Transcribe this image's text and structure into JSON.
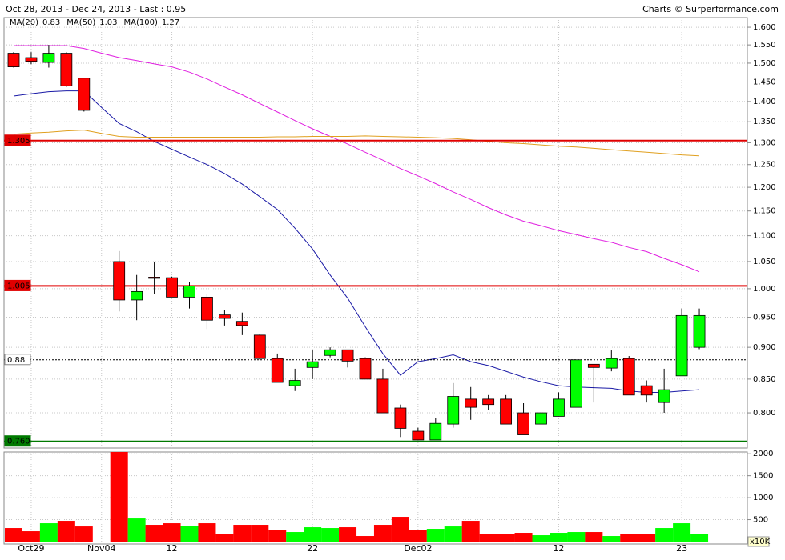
{
  "chart_data": [
    {
      "type": "candlestick",
      "title": "Oct 28, 2013 - Dec 24, 2013 - Last : 0.95",
      "source": "Charts © Surperformance.com",
      "categories": [
        null,
        "Oct29",
        null,
        null,
        null,
        "Nov04",
        null,
        null,
        null,
        "12",
        null,
        null,
        null,
        null,
        null,
        null,
        null,
        "22",
        null,
        null,
        null,
        null,
        null,
        "Dec02",
        null,
        null,
        null,
        null,
        null,
        null,
        null,
        "12",
        null,
        null,
        null,
        null,
        null,
        null,
        "23",
        null
      ],
      "open": [
        1.527,
        1.515,
        1.502,
        1.527,
        1.46,
        null,
        1.05,
        0.98,
        1.021,
        1.02,
        0.985,
        0.985,
        0.954,
        0.943,
        0.92,
        0.882,
        0.84,
        0.868,
        0.887,
        0.896,
        0.882,
        0.85,
        0.807,
        0.774,
        0.762,
        0.784,
        0.82,
        0.82,
        0.82,
        0.8,
        0.784,
        0.795,
        0.808,
        0.873,
        0.867,
        0.882,
        0.84,
        0.815,
        0.855,
        0.9
      ],
      "high": [
        1.53,
        1.53,
        1.55,
        1.53,
        1.46,
        null,
        1.07,
        1.025,
        1.05,
        1.022,
        1.012,
        0.99,
        0.963,
        0.958,
        0.922,
        0.89,
        0.866,
        0.896,
        0.9,
        0.896,
        0.884,
        0.866,
        0.812,
        0.779,
        0.793,
        0.844,
        0.838,
        0.826,
        0.826,
        0.814,
        0.814,
        0.83,
        0.88,
        0.873,
        0.895,
        0.886,
        0.848,
        0.866,
        0.965,
        0.965
      ],
      "low": [
        1.488,
        1.497,
        1.488,
        1.437,
        1.375,
        null,
        0.96,
        0.945,
        0.99,
        0.985,
        0.965,
        0.93,
        0.936,
        0.92,
        0.88,
        0.845,
        0.832,
        0.85,
        0.884,
        0.868,
        0.85,
        0.8,
        0.766,
        0.762,
        0.762,
        0.779,
        0.79,
        0.804,
        0.784,
        0.769,
        0.769,
        0.795,
        0.808,
        0.815,
        0.862,
        0.826,
        0.815,
        0.8,
        0.855,
        0.897
      ],
      "close": [
        1.49,
        1.505,
        1.527,
        1.44,
        1.378,
        null,
        0.98,
        0.995,
        1.02,
        0.985,
        1.005,
        0.945,
        0.948,
        0.936,
        0.882,
        0.845,
        0.848,
        0.877,
        0.896,
        0.878,
        0.85,
        0.8,
        0.778,
        0.762,
        0.785,
        0.824,
        0.808,
        0.812,
        0.784,
        0.769,
        0.8,
        0.82,
        0.88,
        0.868,
        0.882,
        0.826,
        0.826,
        0.834,
        0.953,
        0.953
      ],
      "up_color": "#00ff00",
      "down_color": "#ff0000",
      "series": [
        {
          "name": "MA(20)",
          "last": 0.83,
          "color": "#1a1aa6",
          "values": [
            1.414,
            1.42,
            1.425,
            1.427,
            1.427,
            1.385,
            1.346,
            1.326,
            1.303,
            1.285,
            1.267,
            1.25,
            1.23,
            1.207,
            1.18,
            1.153,
            1.115,
            1.074,
            1.025,
            0.983,
            0.934,
            0.89,
            0.856,
            0.877,
            0.882,
            0.888,
            0.877,
            0.871,
            0.862,
            0.853,
            0.846,
            0.84,
            0.838,
            0.837,
            0.836,
            0.832,
            0.83,
            0.83,
            0.832,
            0.834
          ]
        },
        {
          "name": "MA(50)",
          "last": 1.03,
          "color": "#e020e0",
          "values": [
            1.548,
            1.548,
            1.548,
            1.548,
            1.54,
            1.527,
            1.515,
            1.507,
            1.498,
            1.49,
            1.476,
            1.458,
            1.437,
            1.417,
            1.395,
            1.374,
            1.353,
            1.333,
            1.315,
            1.297,
            1.278,
            1.26,
            1.241,
            1.225,
            1.208,
            1.19,
            1.174,
            1.157,
            1.142,
            1.129,
            1.12,
            1.11,
            1.102,
            1.094,
            1.087,
            1.077,
            1.069,
            1.056,
            1.044,
            1.031
          ]
        },
        {
          "name": "MA(100)",
          "last": 1.27,
          "color": "#e0a020",
          "values": [
            1.32,
            1.323,
            1.325,
            1.328,
            1.33,
            1.322,
            1.315,
            1.313,
            1.313,
            1.313,
            1.313,
            1.313,
            1.313,
            1.313,
            1.313,
            1.314,
            1.314,
            1.315,
            1.315,
            1.315,
            1.316,
            1.315,
            1.314,
            1.313,
            1.312,
            1.31,
            1.307,
            1.303,
            1.3,
            1.298,
            1.295,
            1.292,
            1.29,
            1.287,
            1.284,
            1.281,
            1.278,
            1.275,
            1.272,
            1.27
          ]
        }
      ],
      "levels": [
        {
          "value": 1.305,
          "color": "#e00000"
        },
        {
          "value": 1.005,
          "color": "#e00000"
        },
        {
          "value": 0.88,
          "color": "#000000",
          "dashed": true
        },
        {
          "value": 0.76,
          "label": "0.760",
          "color": "#007a00"
        }
      ],
      "log_scale": true,
      "ylim": [
        0.751,
        1.628
      ],
      "yticks": [
        {
          "value": 1.6,
          "label": "1.600"
        },
        {
          "value": 1.55,
          "label": "1.550"
        },
        {
          "value": 1.5,
          "label": "1.500"
        },
        {
          "value": 1.45,
          "label": "1.450"
        },
        {
          "value": 1.4,
          "label": "1.400"
        },
        {
          "value": 1.35,
          "label": "1.350"
        },
        {
          "value": 1.3,
          "label": "1.300"
        },
        {
          "value": 1.25,
          "label": "1.250"
        },
        {
          "value": 1.2,
          "label": "1.200"
        },
        {
          "value": 1.15,
          "label": "1.150"
        },
        {
          "value": 1.1,
          "label": "1.100"
        },
        {
          "value": 1.05,
          "label": "1.050"
        },
        {
          "value": 1.0,
          "label": "1.000"
        },
        {
          "value": 0.95,
          "label": "0.950"
        },
        {
          "value": 0.9,
          "label": "0.900"
        },
        {
          "value": 0.85,
          "label": "0.850"
        },
        {
          "value": 0.8,
          "label": "0.800"
        }
      ],
      "grid": true
    },
    {
      "type": "bar",
      "unit_label": "x10K",
      "values": [
        309,
        236,
        418,
        473,
        345,
        null,
        2040,
        527,
        382,
        418,
        364,
        418,
        182,
        382,
        382,
        273,
        218,
        327,
        309,
        327,
        127,
        382,
        564,
        273,
        291,
        345,
        473,
        164,
        182,
        200,
        145,
        200,
        218,
        218,
        127,
        182,
        182,
        309,
        418,
        164
      ],
      "ylim": [
        0,
        2040
      ],
      "yticks": [
        500,
        1000,
        1500,
        2000
      ],
      "grid": true
    }
  ]
}
